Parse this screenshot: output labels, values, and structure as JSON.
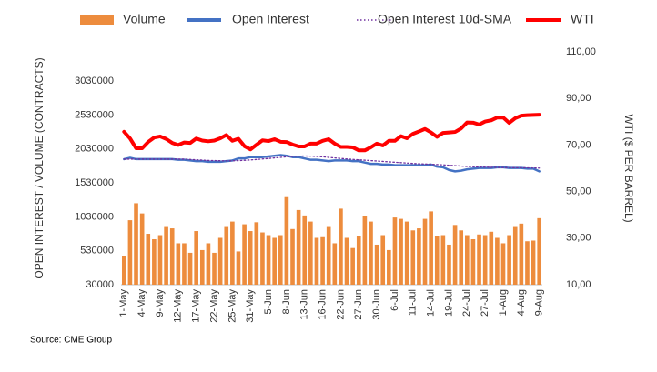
{
  "chart_data": {
    "type": "combo",
    "y_label": "OPEN INTEREST / VOLUME (CONTRACTS)",
    "y2_label": "WTI ($ PER BARREL)",
    "source": "Source: CME Group",
    "categories": [
      "1-May",
      null,
      null,
      "4-May",
      null,
      null,
      "9-May",
      null,
      null,
      "12-May",
      null,
      null,
      "17-May",
      null,
      null,
      "22-May",
      null,
      null,
      "25-May",
      null,
      null,
      "31-May",
      null,
      null,
      "5-Jun",
      null,
      null,
      "8-Jun",
      null,
      null,
      "13-Jun",
      null,
      null,
      "16-Jun",
      null,
      null,
      "22-Jun",
      null,
      null,
      "27-Jun",
      null,
      null,
      "30-Jun",
      null,
      null,
      "6-Jul",
      null,
      null,
      "11-Jul",
      null,
      null,
      "14-Jul",
      null,
      null,
      "19-Jul",
      null,
      null,
      "24-Jul",
      null,
      null,
      "27-Jul",
      null,
      null,
      "1-Aug",
      null,
      null,
      "4-Aug",
      null,
      null,
      "9-Aug"
    ],
    "ylim": [
      30000,
      3460000
    ],
    "yticks": [
      30000,
      530000,
      1030000,
      1530000,
      2030000,
      2530000,
      3030000
    ],
    "y2lim": [
      10,
      110
    ],
    "y2ticks": [
      {
        "value": 10,
        "label": "10,00"
      },
      {
        "value": 30,
        "label": "30,00"
      },
      {
        "value": 50,
        "label": "50,00"
      },
      {
        "value": 70,
        "label": "70,00"
      },
      {
        "value": 90,
        "label": "90,00"
      },
      {
        "value": 110,
        "label": "110,00"
      }
    ],
    "series": [
      {
        "name": "Volume",
        "type": "bar",
        "color": "#ed8c3d",
        "values": [
          450000,
          980000,
          1230000,
          1080000,
          780000,
          700000,
          760000,
          880000,
          860000,
          640000,
          640000,
          500000,
          820000,
          540000,
          640000,
          500000,
          720000,
          880000,
          960000,
          520000,
          920000,
          820000,
          950000,
          800000,
          760000,
          720000,
          760000,
          1320000,
          850000,
          1130000,
          1050000,
          960000,
          720000,
          730000,
          880000,
          640000,
          1150000,
          720000,
          570000,
          740000,
          1040000,
          960000,
          620000,
          760000,
          540000,
          1020000,
          1000000,
          960000,
          830000,
          860000,
          1000000,
          1110000,
          750000,
          760000,
          620000,
          910000,
          830000,
          760000,
          700000,
          770000,
          760000,
          810000,
          720000,
          640000,
          760000,
          880000,
          930000,
          670000,
          680000,
          1010000
        ]
      },
      {
        "name": "Open Interest",
        "type": "line",
        "color": "#4472c4",
        "line_style": "solid",
        "values": [
          1880000,
          1900000,
          1880000,
          1880000,
          1880000,
          1880000,
          1880000,
          1880000,
          1880000,
          1870000,
          1870000,
          1860000,
          1850000,
          1850000,
          1840000,
          1840000,
          1840000,
          1850000,
          1860000,
          1890000,
          1890000,
          1910000,
          1910000,
          1910000,
          1920000,
          1930000,
          1940000,
          1930000,
          1910000,
          1910000,
          1890000,
          1870000,
          1870000,
          1860000,
          1850000,
          1860000,
          1860000,
          1860000,
          1850000,
          1850000,
          1830000,
          1810000,
          1810000,
          1800000,
          1800000,
          1790000,
          1790000,
          1790000,
          1790000,
          1790000,
          1790000,
          1800000,
          1770000,
          1760000,
          1720000,
          1700000,
          1710000,
          1730000,
          1740000,
          1750000,
          1750000,
          1750000,
          1760000,
          1760000,
          1750000,
          1750000,
          1750000,
          1740000,
          1740000,
          1700000
        ]
      },
      {
        "name": "Open Interest 10d-SMA",
        "type": "line",
        "color": "#7030a0",
        "line_style": "dotted",
        "values": [
          1880000,
          1880000,
          1880000,
          1880000,
          1880000,
          1880000,
          1880000,
          1880000,
          1880000,
          1880000,
          1880000,
          1875000,
          1870000,
          1865000,
          1860000,
          1858000,
          1856000,
          1855000,
          1855000,
          1858000,
          1862000,
          1868000,
          1875000,
          1882000,
          1890000,
          1898000,
          1906000,
          1914000,
          1920000,
          1924000,
          1926000,
          1924000,
          1920000,
          1914000,
          1906000,
          1898000,
          1890000,
          1882000,
          1876000,
          1870000,
          1864000,
          1858000,
          1852000,
          1846000,
          1840000,
          1834000,
          1828000,
          1822000,
          1816000,
          1812000,
          1808000,
          1804000,
          1800000,
          1796000,
          1790000,
          1784000,
          1778000,
          1772000,
          1768000,
          1764000,
          1762000,
          1760000,
          1758000,
          1756000,
          1755000,
          1754000,
          1753000,
          1752000,
          1750000,
          1748000
        ]
      },
      {
        "name": "WTI",
        "type": "line",
        "axis": "y2",
        "color": "#ff0000",
        "line_style": "solid",
        "values": [
          75.7,
          72.8,
          68.6,
          68.6,
          71.3,
          73.2,
          73.7,
          72.6,
          70.9,
          70.0,
          71.1,
          70.9,
          72.8,
          71.9,
          71.6,
          71.9,
          72.9,
          74.3,
          71.8,
          72.7,
          69.5,
          68.1,
          70.1,
          72.0,
          71.7,
          72.5,
          71.4,
          71.3,
          70.2,
          69.4,
          69.4,
          70.6,
          70.6,
          71.8,
          72.5,
          70.6,
          69.2,
          69.2,
          69.0,
          67.7,
          67.7,
          69.0,
          70.6,
          69.8,
          71.8,
          71.8,
          73.8,
          72.9,
          74.8,
          75.8,
          76.9,
          75.4,
          73.5,
          75.2,
          75.4,
          75.6,
          77.1,
          79.7,
          79.6,
          78.8,
          80.1,
          80.6,
          81.8,
          81.8,
          79.5,
          81.5,
          82.6,
          82.8,
          82.9,
          83.0
        ]
      }
    ]
  }
}
